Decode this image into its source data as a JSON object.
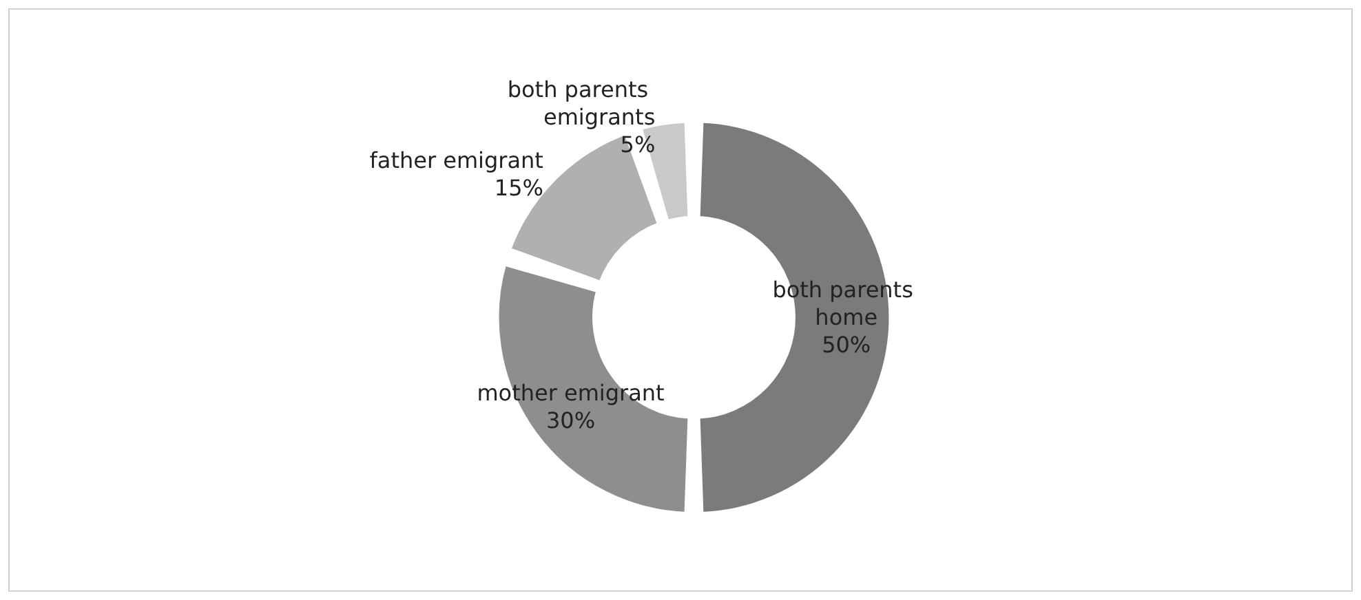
{
  "chart_data": {
    "type": "donut",
    "categories": [
      "both parents home",
      "mother emigrant",
      "father emigrant",
      "both parents emigrants"
    ],
    "values": [
      50,
      30,
      15,
      5
    ],
    "value_labels": [
      "50%",
      "30%",
      "15%",
      "5%"
    ],
    "colors": [
      "#7b7b7b",
      "#8e8e8e",
      "#b0b0b0",
      "#c9c9c9"
    ],
    "legend": false
  }
}
